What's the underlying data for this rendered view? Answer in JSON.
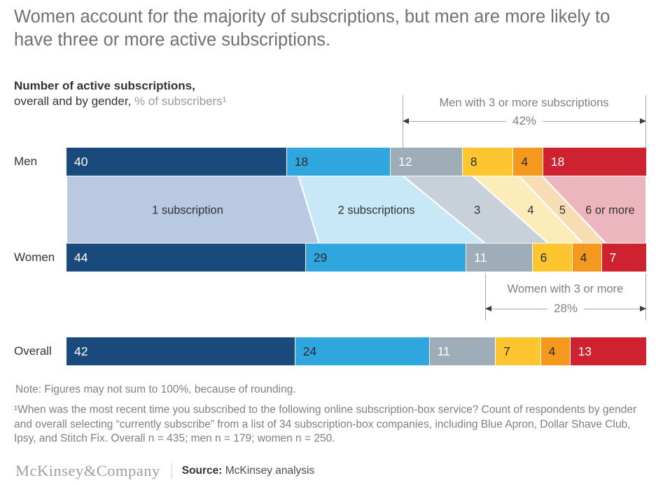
{
  "title": "Women account for the majority of subscriptions, but men are more likely to have three or more active subscriptions.",
  "subtitle": {
    "line1_bold": "Number of active subscriptions,",
    "line2_dark": "overall and by gender,",
    "line2_gray": " % of subscribers¹"
  },
  "chart_data": {
    "type": "bar",
    "stacked": true,
    "orientation": "horizontal",
    "unit": "% of subscribers",
    "categories": [
      "1 subscription",
      "2 subscriptions",
      "3",
      "4",
      "5",
      "6 or more"
    ],
    "segment_colors": [
      "#1a4a7c",
      "#2fa7de",
      "#9fadb9",
      "#fdc530",
      "#f4991e",
      "#cf2231"
    ],
    "segment_text_colors": [
      "#ffffff",
      "#2b2b2b",
      "#ffffff",
      "#2b2b2b",
      "#2b2b2b",
      "#ffffff"
    ],
    "band_colors": [
      "#b8c9e1",
      "#c9e8f7",
      "#c8d1d9",
      "#fcecb9",
      "#f8dcb4",
      "#ecb6be"
    ],
    "series": [
      {
        "name": "Men",
        "values": [
          40,
          18,
          12,
          8,
          4,
          18
        ]
      },
      {
        "name": "Women",
        "values": [
          44,
          29,
          11,
          6,
          4,
          7
        ]
      },
      {
        "name": "Overall",
        "values": [
          42,
          24,
          11,
          7,
          4,
          13
        ]
      }
    ],
    "annotations": [
      {
        "label": "Men with 3 or more subscriptions",
        "value": "42%",
        "series": "Men",
        "from_segment": 2
      },
      {
        "label": "Women with 3 or more",
        "value": "28%",
        "series": "Women",
        "from_segment": 2
      }
    ]
  },
  "note": "Note: Figures may not sum to 100%, because of rounding.",
  "footnote": "¹When was the most recent time you subscribed to the following online subscription-box service? Count of respondents by gender and overall selecting “currently subscribe” from a list of 34 subscription-box companies, including Blue Apron, Dollar Shave Club, Ipsy, and Stitch Fix. Overall n = 435; men n = 179; women n = 250.",
  "footer": {
    "brand": "McKinsey&Company",
    "source_label": "Source:",
    "source_value": "McKinsey analysis"
  }
}
